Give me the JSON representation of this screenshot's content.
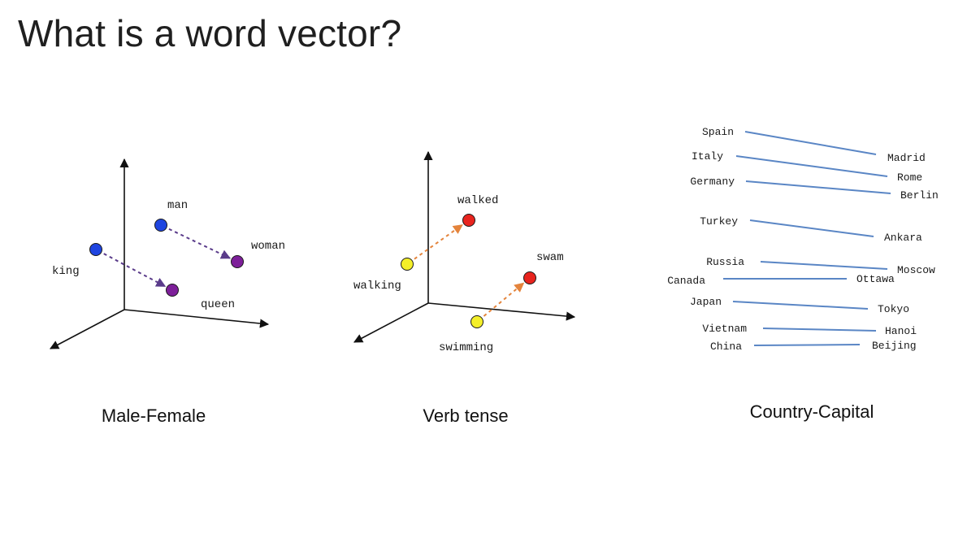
{
  "title": "What is a word vector?",
  "colors": {
    "axis": "#111111",
    "masculine": "#1f45e0",
    "feminine": "#7d1f99",
    "gender_arrow": "#5a3b8a",
    "present": "#f4ef2a",
    "past": "#e8241e",
    "tense_arrow": "#e4843c",
    "capital_line": "#5a86c5"
  },
  "panels": {
    "male_female": {
      "caption": "Male-Female",
      "points": [
        {
          "id": "man",
          "label": "man"
        },
        {
          "id": "woman",
          "label": "woman"
        },
        {
          "id": "king",
          "label": "king"
        },
        {
          "id": "queen",
          "label": "queen"
        }
      ],
      "arrows": [
        {
          "from": "man",
          "to": "woman"
        },
        {
          "from": "king",
          "to": "queen"
        }
      ]
    },
    "verb_tense": {
      "caption": "Verb tense",
      "points": [
        {
          "id": "walked",
          "label": "walked"
        },
        {
          "id": "walking",
          "label": "walking"
        },
        {
          "id": "swam",
          "label": "swam"
        },
        {
          "id": "swimming",
          "label": "swimming"
        }
      ],
      "arrows": [
        {
          "from": "walking",
          "to": "walked"
        },
        {
          "from": "swimming",
          "to": "swam"
        }
      ]
    },
    "country_capital": {
      "caption": "Country-Capital",
      "pairs": [
        {
          "country": "Spain",
          "capital": "Madrid"
        },
        {
          "country": "Italy",
          "capital": "Rome"
        },
        {
          "country": "Germany",
          "capital": "Berlin"
        },
        {
          "country": "Turkey",
          "capital": "Ankara"
        },
        {
          "country": "Russia",
          "capital": "Moscow"
        },
        {
          "country": "Canada",
          "capital": "Ottawa"
        },
        {
          "country": "Japan",
          "capital": "Tokyo"
        },
        {
          "country": "Vietnam",
          "capital": "Hanoi"
        },
        {
          "country": "China",
          "capital": "Beijing"
        }
      ]
    }
  }
}
